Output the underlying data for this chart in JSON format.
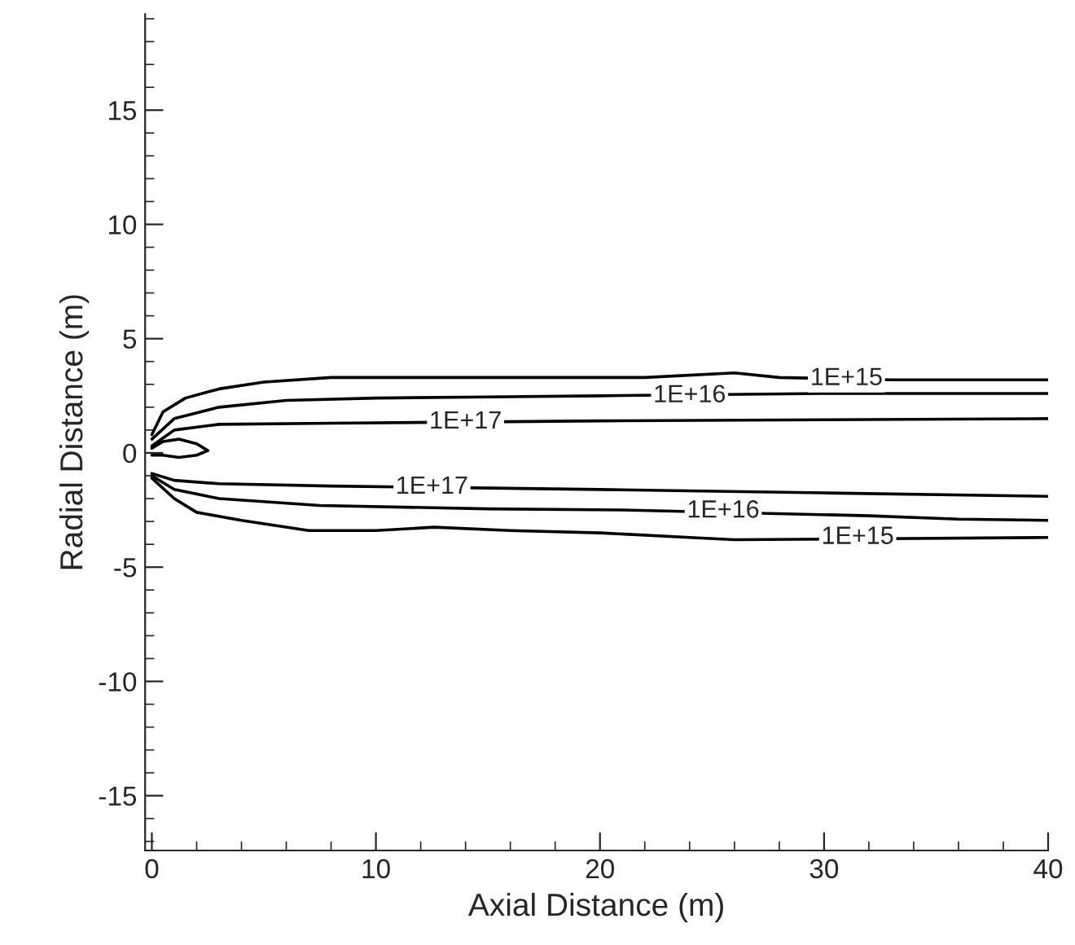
{
  "chart_data": {
    "type": "line",
    "xlabel": "Axial Distance (m)",
    "ylabel": "Radial Distance (m)",
    "xlim": [
      -0.3,
      40
    ],
    "ylim": [
      -17.4,
      19.2
    ],
    "xticks": [
      0,
      10,
      20,
      30,
      40
    ],
    "yticks": [
      -15,
      -10,
      -5,
      0,
      5,
      10,
      15
    ],
    "grid": false,
    "marker": "none",
    "line_style": "solid",
    "series": [
      {
        "color": "#000000",
        "x": [
          0,
          0.5,
          1.5,
          3,
          5,
          8,
          12,
          18,
          22,
          26,
          28,
          33,
          40
        ],
        "values": [
          0.8,
          1.8,
          2.4,
          2.8,
          3.1,
          3.3,
          3.3,
          3.3,
          3.3,
          3.5,
          3.3,
          3.2,
          3.2
        ]
      },
      {
        "color": "#000000",
        "x": [
          0,
          1,
          3,
          6,
          10,
          15,
          20,
          30,
          35,
          40
        ],
        "values": [
          0.6,
          1.5,
          2.0,
          2.3,
          2.4,
          2.45,
          2.5,
          2.6,
          2.6,
          2.6
        ]
      },
      {
        "color": "#000000",
        "x": [
          0,
          1,
          3,
          8,
          20,
          30,
          40
        ],
        "values": [
          0.3,
          1.0,
          1.25,
          1.3,
          1.4,
          1.45,
          1.5
        ]
      },
      {
        "color": "#000000",
        "x": [
          0,
          0.5,
          1.2,
          2.0,
          2.5,
          2.0,
          1.2,
          0.5,
          0
        ],
        "values": [
          0.2,
          0.5,
          0.6,
          0.4,
          0.1,
          -0.1,
          -0.2,
          -0.1,
          -0.1
        ]
      },
      {
        "color": "#000000",
        "x": [
          0,
          1,
          3,
          8,
          20,
          30,
          40
        ],
        "values": [
          -0.9,
          -1.2,
          -1.35,
          -1.45,
          -1.6,
          -1.75,
          -1.9
        ]
      },
      {
        "color": "#000000",
        "x": [
          0,
          1,
          3,
          7.5,
          15,
          21,
          32,
          36,
          40
        ],
        "values": [
          -1.0,
          -1.6,
          -2.0,
          -2.3,
          -2.45,
          -2.5,
          -2.75,
          -2.9,
          -2.95
        ]
      },
      {
        "color": "#000000",
        "x": [
          0,
          1,
          2,
          4,
          7,
          10,
          12.6,
          16,
          20,
          24,
          26,
          40
        ],
        "values": [
          -1.1,
          -2.0,
          -2.6,
          -2.95,
          -3.4,
          -3.4,
          -3.25,
          -3.4,
          -3.5,
          -3.7,
          -3.8,
          -3.7
        ]
      }
    ],
    "annotations": [
      {
        "text": "1E+15",
        "x": 31,
        "y": 3.25
      },
      {
        "text": "1E+16",
        "x": 24,
        "y": 2.5
      },
      {
        "text": "1E+17",
        "x": 14,
        "y": 1.35
      },
      {
        "text": "1E+17",
        "x": 12.5,
        "y": -1.5
      },
      {
        "text": "1E+16",
        "x": 25.5,
        "y": -2.55
      },
      {
        "text": "1E+15",
        "x": 31.5,
        "y": -3.7
      }
    ]
  }
}
